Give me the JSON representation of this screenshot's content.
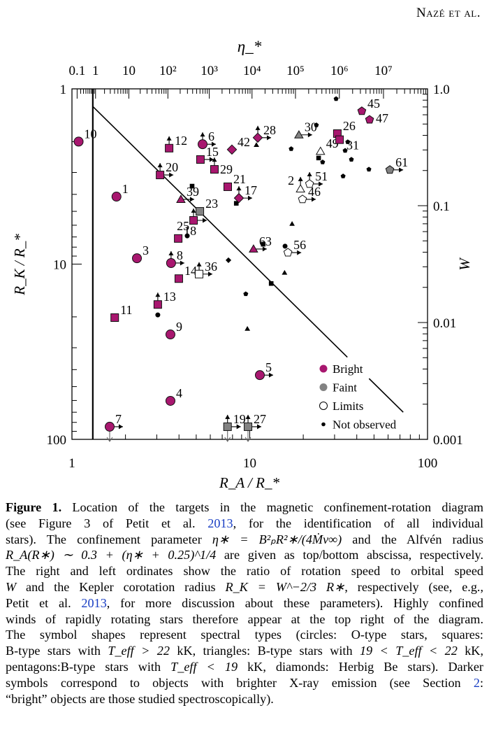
{
  "header": {
    "running_head": "Nazé et al."
  },
  "colors": {
    "bright": "#a8176f",
    "faint": "#828282",
    "limits": "#ffffff",
    "not_observed": "#000000",
    "link": "#1a3fc4"
  },
  "chart_data": {
    "type": "scatter",
    "xlabel": "R_A / R_*",
    "ylabel": "R_K / R_*",
    "top_label": "η_*",
    "right_label": "W",
    "xlim": [
      1,
      100
    ],
    "ylim": [
      1,
      100
    ],
    "y_inverted": true,
    "x_scale": "log",
    "y_scale": "log",
    "bottom_ticks": [
      {
        "v": 1,
        "t": "1"
      },
      {
        "v": 10,
        "t": "10"
      },
      {
        "v": 100,
        "t": "100"
      }
    ],
    "left_ticks": [
      {
        "v": 1,
        "t": "1"
      },
      {
        "v": 10,
        "t": "10"
      },
      {
        "v": 100,
        "t": "100"
      }
    ],
    "right_ticks": [
      {
        "w": 1.0,
        "t": "1.0"
      },
      {
        "w": 0.1,
        "t": "0.1"
      },
      {
        "w": 0.01,
        "t": "0.01"
      },
      {
        "w": 0.001,
        "t": "0.001"
      }
    ],
    "top_ticks": [
      {
        "eta": 0.1,
        "t": "0.1"
      },
      {
        "eta": 1,
        "t": "1"
      },
      {
        "eta": 10,
        "t": "10"
      },
      {
        "eta": 100,
        "t": "10²"
      },
      {
        "eta": 1000,
        "t": "10³"
      },
      {
        "eta": 10000,
        "t": "10⁴"
      },
      {
        "eta": 100000,
        "t": "10⁵"
      },
      {
        "eta": 1000000,
        "t": "10⁶"
      },
      {
        "eta": 10000000,
        "t": "10⁷"
      }
    ],
    "vertical_line_RA": 1.31,
    "diagonal_line": {
      "from": [
        1.31,
        1.26
      ],
      "to": [
        73,
        70
      ]
    },
    "legend": {
      "position": "bottom-right",
      "entries": [
        {
          "label": "Bright",
          "cls": "bright"
        },
        {
          "label": "Faint",
          "cls": "faint"
        },
        {
          "label": "Limits",
          "cls": "limits"
        },
        {
          "label": "Not observed",
          "cls": "none"
        }
      ]
    },
    "points": [
      {
        "label": "10",
        "x": 1.09,
        "y": 2.0,
        "shape": "circle",
        "cls": "bright",
        "arrows": []
      },
      {
        "label": "1",
        "x": 1.78,
        "y": 4.12,
        "shape": "circle",
        "cls": "bright",
        "arrows": []
      },
      {
        "label": "12",
        "x": 3.52,
        "y": 2.18,
        "shape": "square",
        "cls": "bright",
        "arrows": [
          "up"
        ]
      },
      {
        "label": "6",
        "x": 5.43,
        "y": 2.07,
        "shape": "circle",
        "cls": "bright",
        "arrows": [
          "up",
          "right"
        ]
      },
      {
        "label": "42",
        "x": 7.94,
        "y": 2.22,
        "shape": "diamond",
        "cls": "bright",
        "arrows": []
      },
      {
        "label": "28",
        "x": 11.1,
        "y": 1.9,
        "shape": "diamond",
        "cls": "bright",
        "arrows": [
          "up",
          "right"
        ]
      },
      {
        "label": "15",
        "x": 5.28,
        "y": 2.53,
        "shape": "square",
        "cls": "bright",
        "arrows": [
          "right"
        ]
      },
      {
        "label": "29",
        "x": 6.33,
        "y": 2.88,
        "shape": "square",
        "cls": "bright",
        "arrows": [
          "up"
        ]
      },
      {
        "label": "20",
        "x": 3.13,
        "y": 3.1,
        "shape": "square",
        "cls": "bright",
        "arrows": [
          "up",
          "right"
        ]
      },
      {
        "label": "21",
        "x": 7.52,
        "y": 3.62,
        "shape": "square",
        "cls": "bright",
        "arrows": []
      },
      {
        "label": "17",
        "x": 8.69,
        "y": 4.2,
        "shape": "diamond",
        "cls": "bright",
        "arrows": [
          "up",
          "right"
        ]
      },
      {
        "label": "39",
        "x": 4.1,
        "y": 4.27,
        "shape": "triangle",
        "cls": "bright",
        "arrows": [
          "right"
        ]
      },
      {
        "label": "23",
        "x": 5.24,
        "y": 5.0,
        "shape": "square",
        "cls": "faint",
        "arrows": []
      },
      {
        "label": "25",
        "x": 4.83,
        "y": 5.63,
        "shape": "square",
        "cls": "bright",
        "arrows": [
          "up",
          "right"
        ]
      },
      {
        "label": "18",
        "x": 3.96,
        "y": 7.14,
        "shape": "square",
        "cls": "bright",
        "arrows": []
      },
      {
        "label": "8",
        "x": 3.61,
        "y": 9.86,
        "shape": "circle",
        "cls": "bright",
        "arrows": [
          "up",
          "right"
        ]
      },
      {
        "label": "3",
        "x": 2.32,
        "y": 9.26,
        "shape": "circle",
        "cls": "bright",
        "arrows": []
      },
      {
        "label": "14",
        "x": 3.99,
        "y": 12.1,
        "shape": "square",
        "cls": "bright",
        "arrows": []
      },
      {
        "label": "36",
        "x": 5.19,
        "y": 11.4,
        "shape": "square",
        "cls": "limits",
        "arrows": [
          "up",
          "right"
        ]
      },
      {
        "label": "13",
        "x": 3.04,
        "y": 17.0,
        "shape": "square",
        "cls": "bright",
        "arrows": [
          "up"
        ]
      },
      {
        "label": "11",
        "x": 1.74,
        "y": 20.2,
        "shape": "square",
        "cls": "bright",
        "arrows": []
      },
      {
        "label": "9",
        "x": 3.58,
        "y": 25.2,
        "shape": "circle",
        "cls": "bright",
        "arrows": []
      },
      {
        "label": "5",
        "x": 11.4,
        "y": 43.0,
        "shape": "circle",
        "cls": "bright",
        "arrows": [
          "right"
        ]
      },
      {
        "label": "4",
        "x": 3.58,
        "y": 60.3,
        "shape": "circle",
        "cls": "bright",
        "arrows": []
      },
      {
        "label": "7",
        "x": 1.63,
        "y": 84.7,
        "shape": "circle",
        "cls": "bright",
        "arrows": [
          "right",
          "down"
        ]
      },
      {
        "label": "19",
        "x": 7.5,
        "y": 84.7,
        "shape": "square",
        "cls": "faint",
        "arrows": [
          "up",
          "right",
          "down"
        ]
      },
      {
        "label": "27",
        "x": 9.78,
        "y": 84.7,
        "shape": "square",
        "cls": "faint",
        "arrows": [
          "up",
          "right",
          "down"
        ]
      },
      {
        "label": "63",
        "x": 10.5,
        "y": 8.2,
        "shape": "triangle",
        "cls": "bright",
        "arrows": [
          "right"
        ]
      },
      {
        "label": "56",
        "x": 16.4,
        "y": 8.6,
        "shape": "pentagon",
        "cls": "limits",
        "arrows": [
          "right"
        ]
      },
      {
        "label": "30",
        "x": 18.9,
        "y": 1.83,
        "shape": "triangle",
        "cls": "faint",
        "arrows": [
          "right"
        ]
      },
      {
        "label": "49",
        "x": 25.0,
        "y": 2.27,
        "shape": "triangle",
        "cls": "limits",
        "arrows": []
      },
      {
        "label": "26",
        "x": 31.1,
        "y": 1.8,
        "shape": "square",
        "cls": "bright",
        "arrows": []
      },
      {
        "label": "31",
        "x": 32.0,
        "y": 1.95,
        "shape": "square",
        "cls": "bright",
        "arrows": []
      },
      {
        "label": "45",
        "x": 42.7,
        "y": 1.34,
        "shape": "pentagon",
        "cls": "bright",
        "arrows": []
      },
      {
        "label": "47",
        "x": 47.2,
        "y": 1.5,
        "shape": "pentagon",
        "cls": "bright",
        "arrows": []
      },
      {
        "label": "61",
        "x": 61.4,
        "y": 2.9,
        "shape": "pentagon",
        "cls": "faint",
        "arrows": [
          "right"
        ]
      },
      {
        "label": "2",
        "x": 19.3,
        "y": 3.72,
        "shape": "triangle",
        "cls": "limits",
        "arrows": [
          "up"
        ]
      },
      {
        "label": "51",
        "x": 21.7,
        "y": 3.49,
        "shape": "pentagon",
        "cls": "limits",
        "arrows": [
          "up",
          "right"
        ]
      },
      {
        "label": "46",
        "x": 19.8,
        "y": 4.27,
        "shape": "pentagon",
        "cls": "limits",
        "arrows": [
          "right"
        ]
      }
    ],
    "not_observed": [
      {
        "x": 4.74,
        "y": 3.59,
        "shape": "square"
      },
      {
        "x": 8.4,
        "y": 4.5,
        "shape": "square"
      },
      {
        "x": 4.45,
        "y": 6.9,
        "shape": "circle"
      },
      {
        "x": 7.59,
        "y": 9.5,
        "shape": "diamond"
      },
      {
        "x": 10.9,
        "y": 2.09,
        "shape": "triangle"
      },
      {
        "x": 30.6,
        "y": 1.14,
        "shape": "pentagon"
      },
      {
        "x": 23.7,
        "y": 1.61,
        "shape": "pentagon"
      },
      {
        "x": 17.1,
        "y": 2.2,
        "shape": "pentagon"
      },
      {
        "x": 24.4,
        "y": 2.48,
        "shape": "square"
      },
      {
        "x": 25.7,
        "y": 2.62,
        "shape": "pentagon"
      },
      {
        "x": 35.6,
        "y": 2.01,
        "shape": "pentagon"
      },
      {
        "x": 34.4,
        "y": 2.25,
        "shape": "pentagon"
      },
      {
        "x": 37.3,
        "y": 2.53,
        "shape": "pentagon"
      },
      {
        "x": 46.8,
        "y": 2.88,
        "shape": "pentagon"
      },
      {
        "x": 33.5,
        "y": 3.15,
        "shape": "pentagon"
      },
      {
        "x": 17.3,
        "y": 5.89,
        "shape": "triangle"
      },
      {
        "x": 11.9,
        "y": 7.7,
        "shape": "square"
      },
      {
        "x": 15.8,
        "y": 7.9,
        "shape": "circle"
      },
      {
        "x": 15.7,
        "y": 11.2,
        "shape": "triangle"
      },
      {
        "x": 13.2,
        "y": 12.9,
        "shape": "square"
      },
      {
        "x": 9.5,
        "y": 14.8,
        "shape": "pentagon"
      },
      {
        "x": 3.04,
        "y": 19.5,
        "shape": "circle"
      },
      {
        "x": 9.7,
        "y": 23.4,
        "shape": "triangle"
      }
    ]
  },
  "caption": {
    "lines": [
      [
        {
          "t": "Figure 1.",
          "c": "b"
        },
        {
          "t": " Location of the targets in the magnetic confinement-rotation diagram",
          "c": ""
        }
      ],
      [
        {
          "t": "(see Figure 3 of Petit et al. ",
          "c": ""
        },
        {
          "t": "2013",
          "c": "link"
        },
        {
          "t": ", for the identification of all individual",
          "c": ""
        }
      ],
      [
        {
          "t": "stars). The confinement parameter ",
          "c": ""
        },
        {
          "t": "η∗ = B²ₚR²∗/(4Ṁv∞)",
          "c": "it"
        },
        {
          "t": " and the Alfvén radius",
          "c": ""
        }
      ],
      [
        {
          "t": "R_A(R∗) ∼ 0.3 + (η∗ + 0.25)^1/4",
          "c": "it"
        },
        {
          "t": " are given as top/bottom abscissa, respectively.",
          "c": ""
        }
      ],
      [
        {
          "t": "The right and left ordinates show the ratio of rotation speed to orbital speed",
          "c": ""
        }
      ],
      [
        {
          "t": "W",
          "c": "it"
        },
        {
          "t": " and the Kepler corotation radius ",
          "c": ""
        },
        {
          "t": "R_K = W^−2/3 R∗",
          "c": "it"
        },
        {
          "t": ", respectively (see, e.g.,",
          "c": ""
        }
      ],
      [
        {
          "t": "Petit et al. ",
          "c": ""
        },
        {
          "t": "2013",
          "c": "link"
        },
        {
          "t": ", for more discussion about these parameters). Highly confined",
          "c": ""
        }
      ],
      [
        {
          "t": "winds of rapidly rotating stars therefore appear at the top right of the diagram.",
          "c": ""
        }
      ],
      [
        {
          "t": "The symbol shapes represent spectral types (circles: O-type stars, squares:",
          "c": ""
        }
      ],
      [
        {
          "t": "B-type stars with ",
          "c": ""
        },
        {
          "t": "T_eff > 22",
          "c": "it"
        },
        {
          "t": " kK, triangles: B-type stars with ",
          "c": ""
        },
        {
          "t": "19 < T_eff < 22",
          "c": "it"
        },
        {
          "t": " kK,",
          "c": ""
        }
      ],
      [
        {
          "t": "pentagons:B-type stars with ",
          "c": ""
        },
        {
          "t": "T_eff < 19",
          "c": "it"
        },
        {
          "t": " kK, diamonds: Herbig Be stars). Darker",
          "c": ""
        }
      ],
      [
        {
          "t": "symbols correspond to objects with brighter X-ray emission (see Section ",
          "c": ""
        },
        {
          "t": "2",
          "c": "link"
        },
        {
          "t": ":",
          "c": ""
        }
      ],
      [
        {
          "t": "“bright” objects are those studied spectroscopically).",
          "c": ""
        }
      ]
    ]
  }
}
